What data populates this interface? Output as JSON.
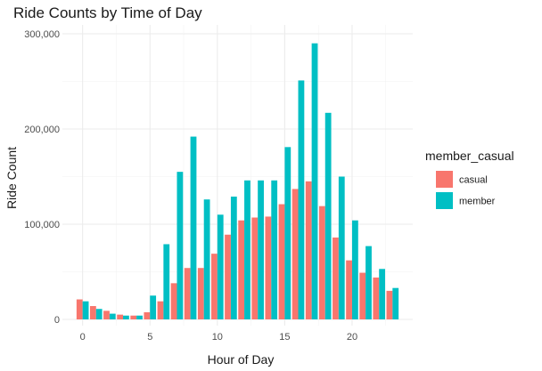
{
  "chart_data": {
    "type": "bar",
    "title": "Ride Counts by Time of Day",
    "xlabel": "Hour of Day",
    "ylabel": "Ride Count",
    "x": [
      0,
      1,
      2,
      3,
      4,
      5,
      6,
      7,
      8,
      9,
      10,
      11,
      12,
      13,
      14,
      15,
      16,
      17,
      18,
      19,
      20,
      21,
      22,
      23
    ],
    "series": [
      {
        "name": "casual",
        "color": "#F8766D",
        "values": [
          21000,
          14000,
          9000,
          5000,
          4000,
          7500,
          19000,
          38000,
          54000,
          54000,
          69000,
          89000,
          104000,
          107000,
          108000,
          121000,
          137000,
          145000,
          119000,
          86000,
          62000,
          49000,
          44000,
          30000
        ]
      },
      {
        "name": "member",
        "color": "#00BFC4",
        "values": [
          19000,
          11000,
          6000,
          4000,
          4000,
          25000,
          79000,
          155000,
          192000,
          126000,
          110000,
          129000,
          146000,
          146000,
          146000,
          181000,
          251000,
          290000,
          217000,
          150000,
          104000,
          77000,
          53000,
          33000
        ]
      }
    ],
    "xlim": [
      -1.5,
      24.5
    ],
    "xticks": [
      0,
      5,
      10,
      15,
      20
    ],
    "xtick_labels": [
      "0",
      "5",
      "10",
      "15",
      "20"
    ],
    "ylim": [
      0,
      300000
    ],
    "yticks": [
      0,
      100000,
      200000,
      300000
    ],
    "ytick_labels": [
      "0",
      "100,000",
      "200,000",
      "300,000"
    ],
    "grid": true,
    "legend": {
      "title": "member_casual",
      "placement": "right",
      "entries": [
        "casual",
        "member"
      ]
    }
  }
}
